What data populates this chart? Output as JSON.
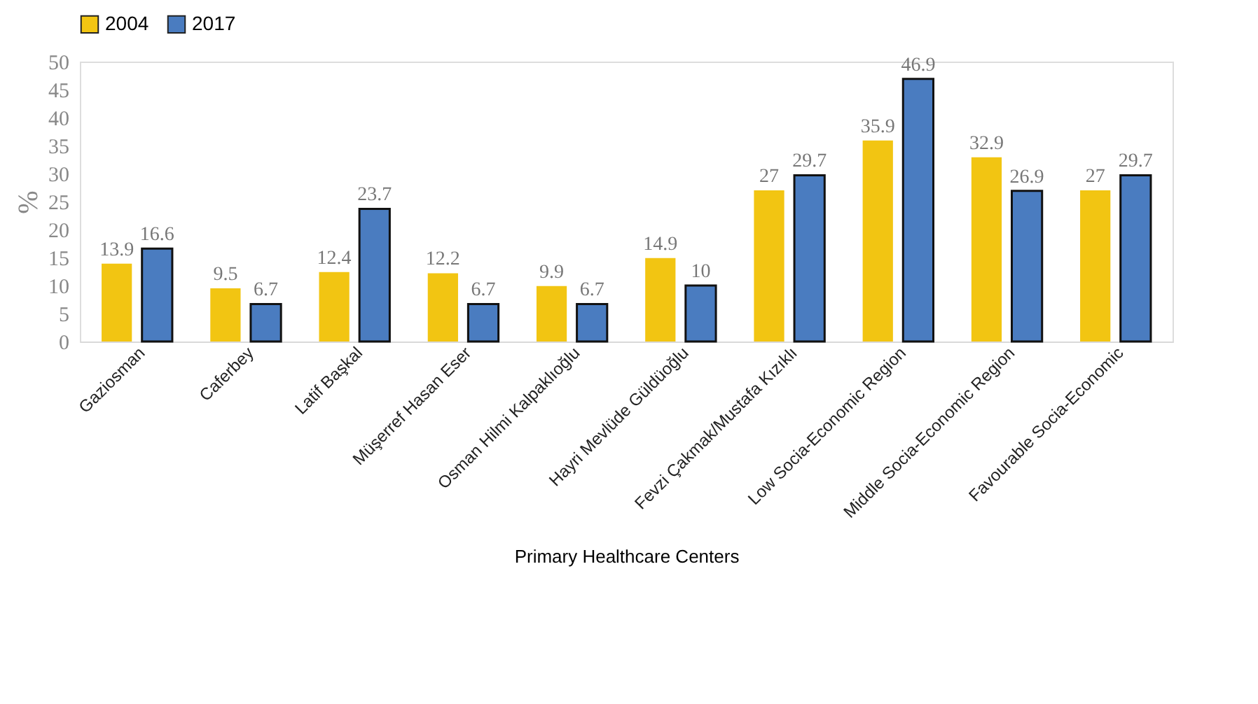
{
  "chart_data": {
    "type": "bar",
    "xlabel": "Primary Healthcare Centers",
    "ylabel": "%",
    "categories": [
      "Gaziosman",
      "Caferbey",
      "Latif Başkal",
      "Müşerref Hasan Eser",
      "Osman Hilmi Kalpaklıoğlu",
      "Hayri Mevlüde Güldüoğlu",
      "Fevzi Çakmak/Mustafa Kızıklı",
      "Low Socia-Economic Region",
      "Middle Socia-Economic Region",
      "Favourable Socia-Economic"
    ],
    "series": [
      {
        "name": "2004",
        "color": "#f2c512",
        "values": [
          13.9,
          9.5,
          12.4,
          12.2,
          9.9,
          14.9,
          27,
          35.9,
          32.9,
          27
        ]
      },
      {
        "name": "2017",
        "color": "#4a7cc0",
        "values": [
          16.6,
          6.7,
          23.7,
          6.7,
          6.7,
          10,
          29.7,
          46.9,
          26.9,
          29.7
        ]
      }
    ],
    "ylim": [
      0,
      50
    ],
    "yticks": [
      0,
      5,
      10,
      15,
      20,
      25,
      30,
      35,
      40,
      45,
      50
    ],
    "grid": false,
    "legend": "top",
    "data_labels": true
  }
}
